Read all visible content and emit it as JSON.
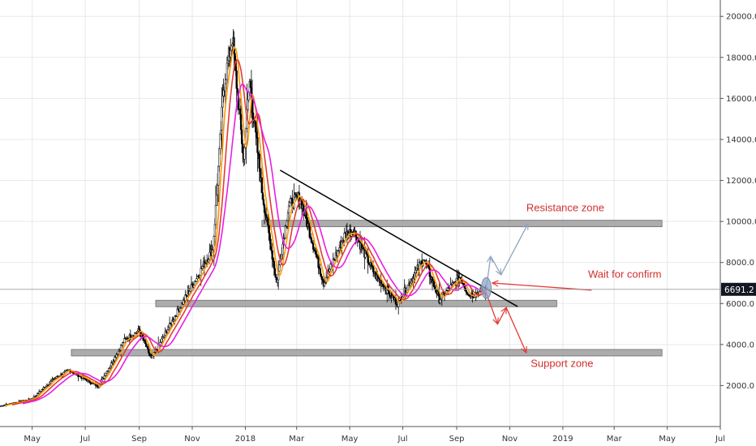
{
  "chart_data": {
    "type": "candlestick",
    "title": "",
    "x_axis": {
      "ticks": [
        {
          "label": "May",
          "date": "2017-05-01"
        },
        {
          "label": "Jul",
          "date": "2017-07-01"
        },
        {
          "label": "Sep",
          "date": "2017-09-01"
        },
        {
          "label": "Nov",
          "date": "2017-11-01"
        },
        {
          "label": "2018",
          "date": "2018-01-01"
        },
        {
          "label": "Mar",
          "date": "2018-03-01"
        },
        {
          "label": "May",
          "date": "2018-05-01"
        },
        {
          "label": "Jul",
          "date": "2018-07-01"
        },
        {
          "label": "Sep",
          "date": "2018-09-01"
        },
        {
          "label": "Nov",
          "date": "2018-11-01"
        },
        {
          "label": "2019",
          "date": "2019-01-01"
        },
        {
          "label": "Mar",
          "date": "2019-03-01"
        },
        {
          "label": "May",
          "date": "2019-05-01"
        },
        {
          "label": "Jul",
          "date": "2019-07-01"
        }
      ],
      "range": [
        "2017-03-25",
        "2019-07-01"
      ]
    },
    "y_axis": {
      "position": "right",
      "range": [
        0,
        20800
      ],
      "ticks": [
        "2000.0",
        "4000.0",
        "6000.0",
        "8000.0",
        "10000.0",
        "12000.0",
        "14000.0",
        "16000.0",
        "18000.0",
        "20000.0"
      ],
      "grid": true
    },
    "last_price": "6691.2",
    "last_price_value": 6691.2,
    "price_anchors": [
      {
        "date": "2017-03-25",
        "value": 1000
      },
      {
        "date": "2017-05-01",
        "value": 1350
      },
      {
        "date": "2017-05-25",
        "value": 2300
      },
      {
        "date": "2017-06-12",
        "value": 2750
      },
      {
        "date": "2017-07-16",
        "value": 1950
      },
      {
        "date": "2017-08-15",
        "value": 4200
      },
      {
        "date": "2017-09-01",
        "value": 4700
      },
      {
        "date": "2017-09-15",
        "value": 3300
      },
      {
        "date": "2017-10-15",
        "value": 5600
      },
      {
        "date": "2017-11-08",
        "value": 7400
      },
      {
        "date": "2017-11-25",
        "value": 8700
      },
      {
        "date": "2017-12-07",
        "value": 16500
      },
      {
        "date": "2017-12-17",
        "value": 19000
      },
      {
        "date": "2017-12-30",
        "value": 13000
      },
      {
        "date": "2018-01-06",
        "value": 16800
      },
      {
        "date": "2018-01-20",
        "value": 11500
      },
      {
        "date": "2018-02-06",
        "value": 7000
      },
      {
        "date": "2018-02-20",
        "value": 10800
      },
      {
        "date": "2018-03-05",
        "value": 11200
      },
      {
        "date": "2018-04-01",
        "value": 7000
      },
      {
        "date": "2018-04-25",
        "value": 9300
      },
      {
        "date": "2018-05-05",
        "value": 9600
      },
      {
        "date": "2018-05-30",
        "value": 7400
      },
      {
        "date": "2018-06-25",
        "value": 6000
      },
      {
        "date": "2018-07-25",
        "value": 8200
      },
      {
        "date": "2018-08-12",
        "value": 6200
      },
      {
        "date": "2018-09-05",
        "value": 7300
      },
      {
        "date": "2018-09-15",
        "value": 6400
      },
      {
        "date": "2018-10-05",
        "value": 6650
      }
    ],
    "series": [
      {
        "name": "",
        "type": "moving-average",
        "color": "#ff9800",
        "lag_days": 6
      },
      {
        "name": "",
        "type": "moving-average",
        "color": "#e53935",
        "lag_days": 14
      },
      {
        "name": "",
        "type": "moving-average",
        "color": "#e91ee6",
        "lag_days": 26
      }
    ],
    "zones": [
      {
        "from": "2018-01-20",
        "to": "2019-04-25",
        "value": 9900,
        "color": "#9e9e9e"
      },
      {
        "from": "2017-09-20",
        "to": "2018-12-25",
        "value": 6000,
        "color": "#9e9e9e"
      },
      {
        "from": "2017-06-15",
        "to": "2019-04-25",
        "value": 3600,
        "color": "#9e9e9e"
      }
    ],
    "trendline": {
      "from": {
        "date": "2018-02-10",
        "value": 12500
      },
      "to": {
        "date": "2018-11-10",
        "value": 5850
      },
      "color": "#000000"
    },
    "annotations": [
      {
        "text": "Resistance zone",
        "date": "2018-11-20",
        "value": 10500,
        "color": "#d32f2f"
      },
      {
        "text": "Wait for confirm",
        "date": "2019-01-30",
        "value": 7250,
        "color": "#d32f2f"
      },
      {
        "text": "Support zone",
        "date": "2018-11-25",
        "value": 2900,
        "color": "#d32f2f"
      }
    ],
    "arrows": [
      {
        "color": "#90a4c0",
        "points": [
          {
            "date": "2018-10-05",
            "value": 6750
          },
          {
            "date": "2018-10-10",
            "value": 8300
          },
          {
            "date": "2018-10-22",
            "value": 7400
          },
          {
            "date": "2018-11-22",
            "value": 9900
          }
        ]
      },
      {
        "color": "#e53935",
        "points": [
          {
            "date": "2018-10-05",
            "value": 6500
          },
          {
            "date": "2018-10-18",
            "value": 5000
          },
          {
            "date": "2018-10-28",
            "value": 5800
          }
        ]
      },
      {
        "color": "#e53935",
        "points": [
          {
            "date": "2018-10-28",
            "value": 5800
          },
          {
            "date": "2018-11-20",
            "value": 3600
          }
        ]
      },
      {
        "color": "#e53935",
        "points": [
          {
            "date": "2019-02-03",
            "value": 6650
          },
          {
            "date": "2018-10-12",
            "value": 7000
          }
        ]
      }
    ],
    "ellipse": {
      "date": "2018-10-05",
      "value": 6750,
      "color": "#90a4c8"
    },
    "colors": {
      "bull": "#ffffff",
      "bear": "#000000",
      "grid": "#e9e9e9",
      "axis": "#555555",
      "price_tag": "#131722"
    }
  }
}
